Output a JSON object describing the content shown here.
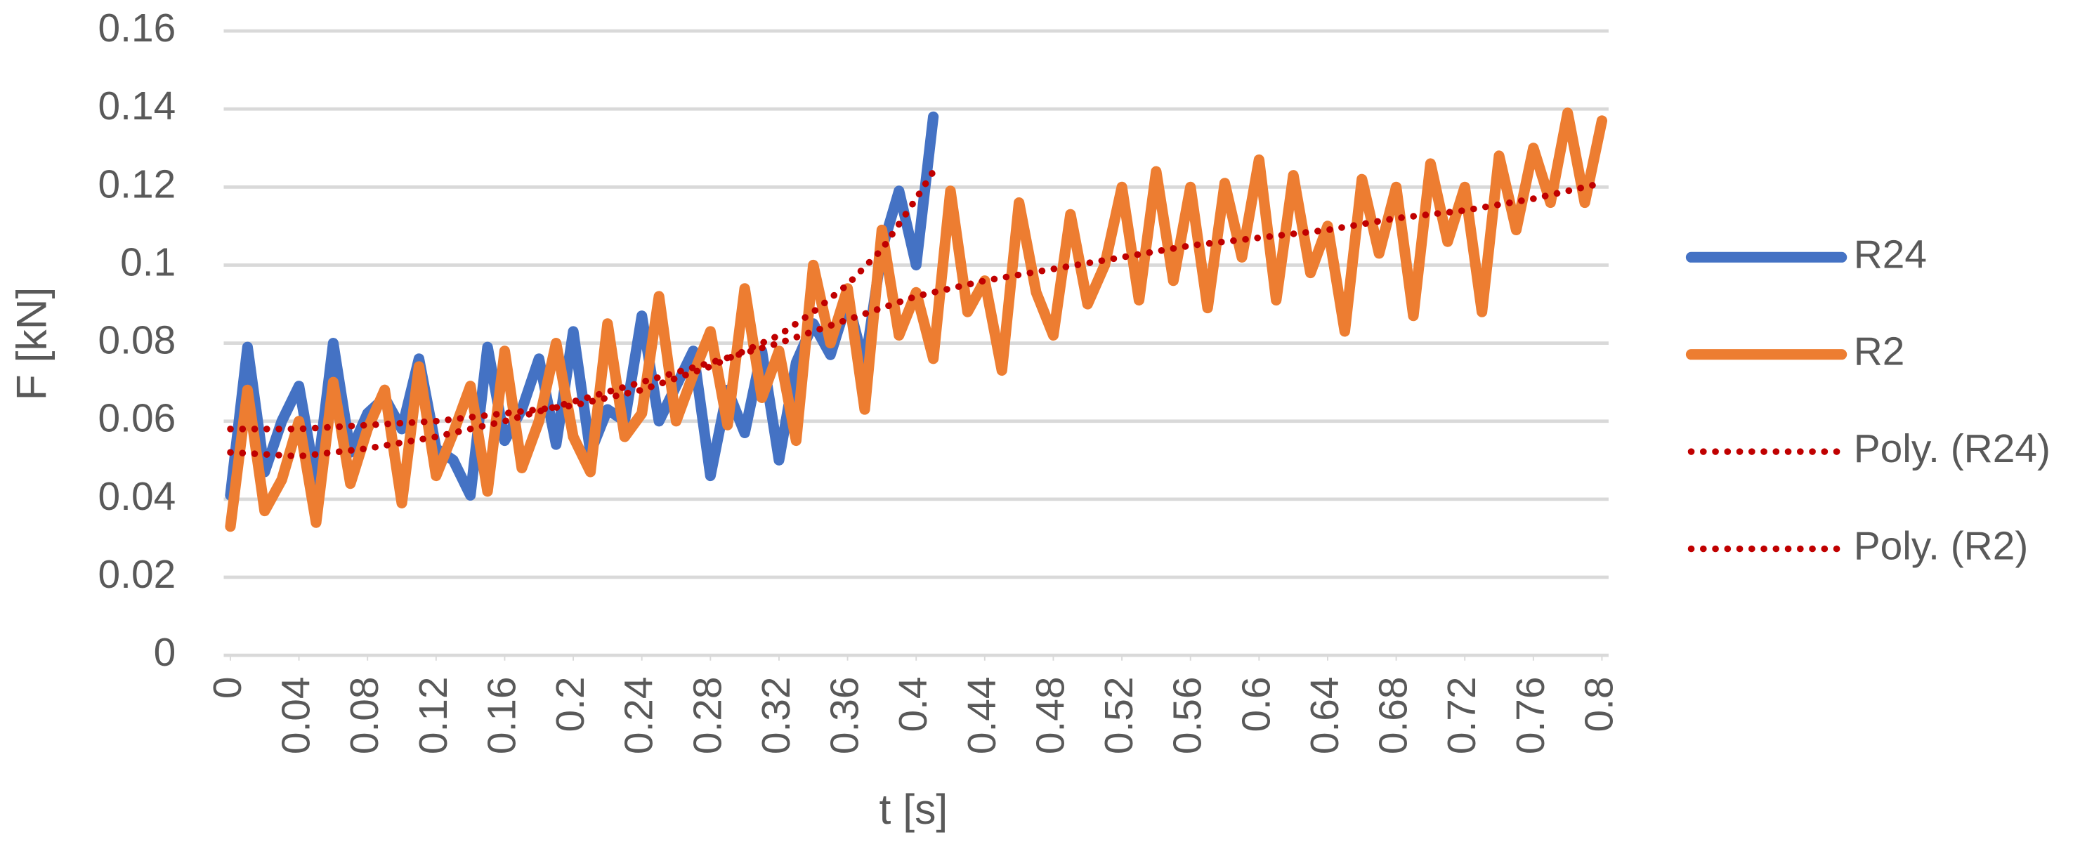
{
  "chart_data": {
    "type": "line",
    "x_label": "t [s]",
    "y_label": "F [kN]",
    "xlim": [
      0,
      0.8
    ],
    "xticks": [
      0,
      0.04,
      0.08,
      0.12,
      0.16,
      0.2,
      0.24,
      0.28,
      0.32,
      0.36,
      0.4,
      0.44,
      0.48,
      0.52,
      0.56,
      0.6,
      0.64,
      0.68,
      0.72,
      0.76,
      0.8
    ],
    "ylim": [
      0,
      0.16
    ],
    "yticks": [
      0,
      0.02,
      0.04,
      0.06,
      0.08,
      0.1,
      0.12,
      0.14,
      0.16
    ],
    "grid": true,
    "legend": "right",
    "series": [
      {
        "name": "R24",
        "color": "#4472c4",
        "style": "solid",
        "x": [
          0,
          0.01,
          0.02,
          0.03,
          0.04,
          0.05,
          0.06,
          0.07,
          0.08,
          0.09,
          0.1,
          0.11,
          0.12,
          0.13,
          0.14,
          0.15,
          0.16,
          0.17,
          0.18,
          0.19,
          0.2,
          0.21,
          0.22,
          0.23,
          0.24,
          0.25,
          0.26,
          0.27,
          0.28,
          0.29,
          0.3,
          0.31,
          0.32,
          0.33,
          0.34,
          0.35,
          0.36,
          0.37,
          0.38,
          0.39,
          0.4,
          0.41
        ],
        "values": [
          0.041,
          0.079,
          0.047,
          0.06,
          0.069,
          0.044,
          0.08,
          0.052,
          0.062,
          0.066,
          0.058,
          0.076,
          0.053,
          0.05,
          0.041,
          0.079,
          0.055,
          0.063,
          0.076,
          0.054,
          0.083,
          0.052,
          0.063,
          0.06,
          0.087,
          0.06,
          0.069,
          0.078,
          0.046,
          0.068,
          0.057,
          0.078,
          0.05,
          0.075,
          0.085,
          0.077,
          0.091,
          0.074,
          0.104,
          0.119,
          0.1,
          0.138
        ]
      },
      {
        "name": "R2",
        "color": "#ed7d31",
        "style": "solid",
        "x": [
          0,
          0.01,
          0.02,
          0.03,
          0.04,
          0.05,
          0.06,
          0.07,
          0.08,
          0.09,
          0.1,
          0.11,
          0.12,
          0.13,
          0.14,
          0.15,
          0.16,
          0.17,
          0.18,
          0.19,
          0.2,
          0.21,
          0.22,
          0.23,
          0.24,
          0.25,
          0.26,
          0.27,
          0.28,
          0.29,
          0.3,
          0.31,
          0.32,
          0.33,
          0.34,
          0.35,
          0.36,
          0.37,
          0.38,
          0.39,
          0.4,
          0.41,
          0.42,
          0.43,
          0.44,
          0.45,
          0.46,
          0.47,
          0.48,
          0.49,
          0.5,
          0.51,
          0.52,
          0.53,
          0.54,
          0.55,
          0.56,
          0.57,
          0.58,
          0.59,
          0.6,
          0.61,
          0.62,
          0.63,
          0.64,
          0.65,
          0.66,
          0.67,
          0.68,
          0.69,
          0.7,
          0.71,
          0.72,
          0.73,
          0.74,
          0.75,
          0.76,
          0.77,
          0.78,
          0.79,
          0.8
        ],
        "values": [
          0.033,
          0.068,
          0.037,
          0.045,
          0.06,
          0.034,
          0.07,
          0.044,
          0.058,
          0.068,
          0.039,
          0.074,
          0.046,
          0.057,
          0.069,
          0.042,
          0.078,
          0.048,
          0.06,
          0.08,
          0.056,
          0.047,
          0.085,
          0.056,
          0.062,
          0.092,
          0.06,
          0.072,
          0.083,
          0.059,
          0.094,
          0.066,
          0.078,
          0.055,
          0.1,
          0.08,
          0.094,
          0.063,
          0.109,
          0.082,
          0.093,
          0.076,
          0.119,
          0.088,
          0.096,
          0.073,
          0.116,
          0.093,
          0.082,
          0.113,
          0.09,
          0.1,
          0.12,
          0.091,
          0.124,
          0.096,
          0.12,
          0.089,
          0.121,
          0.102,
          0.127,
          0.091,
          0.123,
          0.098,
          0.11,
          0.083,
          0.122,
          0.103,
          0.12,
          0.087,
          0.126,
          0.106,
          0.12,
          0.088,
          0.128,
          0.109,
          0.13,
          0.116,
          0.139,
          0.116,
          0.137
        ]
      },
      {
        "name": "Poly. (R24)",
        "color": "#c00000",
        "style": "dotted",
        "x": [
          0,
          0.04,
          0.08,
          0.12,
          0.16,
          0.2,
          0.24,
          0.28,
          0.3,
          0.32,
          0.34,
          0.36,
          0.38,
          0.4,
          0.41
        ],
        "values": [
          0.058,
          0.058,
          0.059,
          0.06,
          0.062,
          0.064,
          0.068,
          0.074,
          0.078,
          0.082,
          0.088,
          0.095,
          0.104,
          0.117,
          0.124
        ]
      },
      {
        "name": "Poly. (R2)",
        "color": "#c00000",
        "style": "dotted",
        "x": [
          0,
          0.04,
          0.08,
          0.12,
          0.16,
          0.2,
          0.24,
          0.28,
          0.32,
          0.36,
          0.4,
          0.44,
          0.48,
          0.52,
          0.56,
          0.6,
          0.64,
          0.68,
          0.72,
          0.76,
          0.8
        ],
        "values": [
          0.052,
          0.051,
          0.053,
          0.056,
          0.06,
          0.065,
          0.07,
          0.075,
          0.08,
          0.086,
          0.092,
          0.096,
          0.099,
          0.102,
          0.105,
          0.107,
          0.109,
          0.112,
          0.114,
          0.117,
          0.121
        ]
      }
    ]
  }
}
